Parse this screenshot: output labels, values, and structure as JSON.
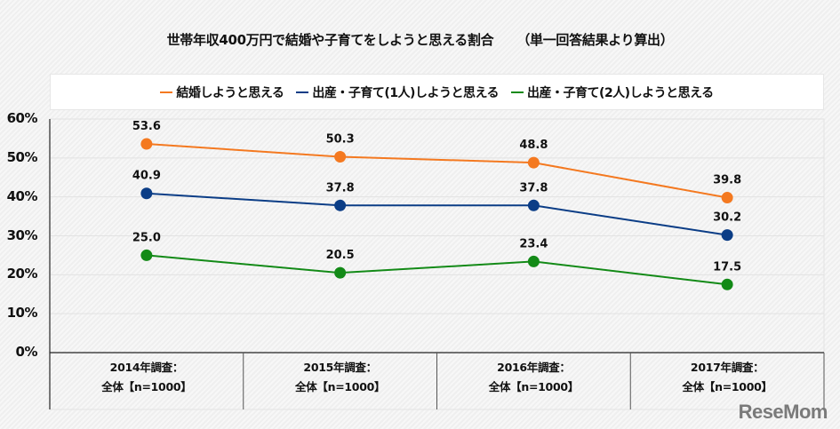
{
  "chart_data": {
    "type": "line",
    "title": "世帯年収400万円で結婚や子育てをしようと思える割合",
    "subtitle": "（単一回答結果より算出）",
    "xlabel": "",
    "ylabel": "",
    "ylim": [
      0,
      60
    ],
    "yticks": [
      0,
      10,
      20,
      30,
      40,
      50,
      60
    ],
    "ytick_labels": [
      "0%",
      "10%",
      "20%",
      "30%",
      "40%",
      "50%",
      "60%"
    ],
    "grid": true,
    "legend_position": "top",
    "categories": [
      {
        "line1": "2014年調査：",
        "line2": "全体【n=1000】"
      },
      {
        "line1": "2015年調査：",
        "line2": "全体【n=1000】"
      },
      {
        "line1": "2016年調査：",
        "line2": "全体【n=1000】"
      },
      {
        "line1": "2017年調査：",
        "line2": "全体【n=1000】"
      }
    ],
    "series": [
      {
        "name": "結婚しようと思える",
        "color": "#f47920",
        "values": [
          53.6,
          50.3,
          48.8,
          39.8
        ]
      },
      {
        "name": "出産・子育て(1人)しようと思える",
        "color": "#0b3d86",
        "values": [
          40.9,
          37.8,
          37.8,
          30.2
        ]
      },
      {
        "name": "出産・子育て(2人)しようと思える",
        "color": "#138a17",
        "values": [
          25.0,
          20.5,
          23.4,
          17.5
        ]
      }
    ]
  },
  "watermark": "ReseMom"
}
